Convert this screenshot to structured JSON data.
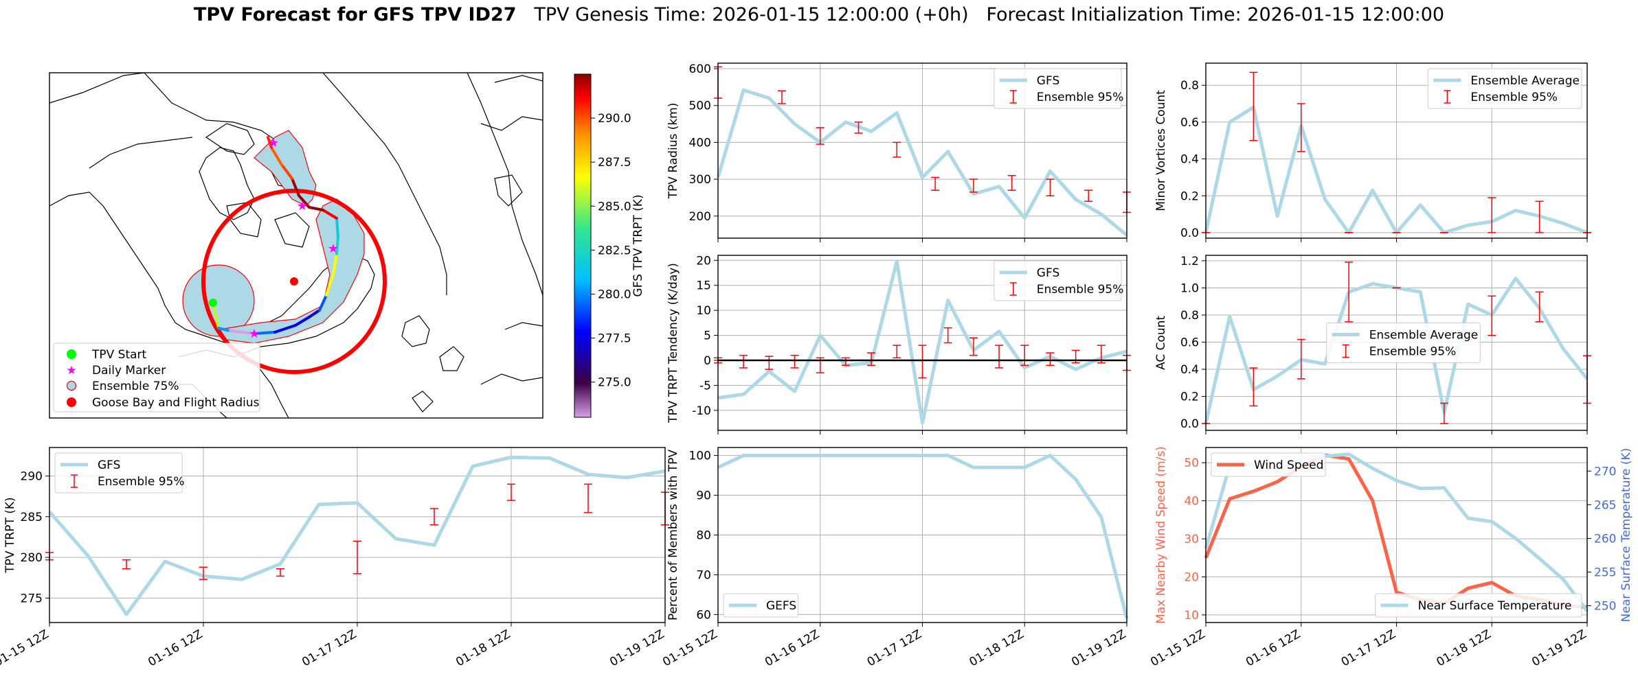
{
  "header": {
    "title_bold": "TPV Forecast for GFS TPV ID27",
    "genesis": "TPV Genesis Time: 2026-01-15 12:00:00 (+0h)",
    "init": "Forecast Initialization Time: 2026-01-15 12:00:00"
  },
  "colors": {
    "gfs_line": "#add8e6",
    "ensemble": "#ff0000",
    "wind": "#ff6347",
    "temperature_axis": "#4169e1",
    "disk": "#add8e6"
  },
  "time_axis": {
    "ticks": [
      "01-15 12Z",
      "01-16 12Z",
      "01-17 12Z",
      "01-18 12Z",
      "01-19 12Z"
    ],
    "range_hours": [
      0,
      96
    ]
  },
  "map": {
    "legend": [
      "TPV Start",
      "Daily Marker",
      "Ensemble 75%",
      "Goose Bay and Flight Radius"
    ],
    "colorbar": {
      "label": "GFS TPV TRPT (K)",
      "ticks": [
        "275.0",
        "277.5",
        "280.0",
        "282.5",
        "285.0",
        "287.5",
        "290.0"
      ],
      "range": [
        273.0,
        292.5
      ]
    },
    "track_trpt": [
      285.6,
      280.2,
      273.0,
      279.5,
      277.7,
      277.3,
      279.2,
      286.5,
      286.7,
      282.3,
      281.5,
      291.2,
      292.3,
      292.2,
      290.2,
      289.8,
      290.6
    ]
  },
  "chart_data": [
    {
      "type": "line",
      "panel": "radius",
      "ylabel": "TPV Radius (km)",
      "ylim": [
        140,
        615
      ],
      "yticks": [
        200,
        300,
        400,
        500,
        600
      ],
      "legend": "top-right",
      "series": [
        {
          "name": "GFS",
          "x": [
            0,
            6,
            12,
            18,
            24,
            30,
            36,
            42,
            48,
            54,
            60,
            66,
            72,
            78,
            84,
            90,
            96
          ],
          "values": [
            305,
            542,
            520,
            450,
            400,
            455,
            430,
            480,
            305,
            375,
            260,
            280,
            195,
            322,
            245,
            205,
            148
          ]
        },
        {
          "name": "Ensemble 95%",
          "x": [
            0,
            15,
            24,
            33,
            42,
            51,
            60,
            69,
            78,
            87,
            96
          ],
          "low": [
            520,
            505,
            395,
            425,
            360,
            270,
            265,
            270,
            255,
            240,
            210
          ],
          "high": [
            605,
            540,
            440,
            455,
            400,
            305,
            300,
            310,
            300,
            270,
            265
          ]
        }
      ]
    },
    {
      "type": "line",
      "panel": "minor_vortices",
      "ylabel": "Minor Vortices Count",
      "ylim": [
        -0.03,
        0.92
      ],
      "yticks": [
        "0.0",
        "0.2",
        "0.4",
        "0.6",
        "0.8"
      ],
      "legend": "top-right",
      "series": [
        {
          "name": "Ensemble Average",
          "x": [
            0,
            6,
            12,
            18,
            24,
            30,
            36,
            42,
            48,
            54,
            60,
            66,
            72,
            78,
            84,
            90,
            96
          ],
          "values": [
            0,
            0.6,
            0.68,
            0.09,
            0.58,
            0.18,
            0,
            0.23,
            0,
            0.15,
            0,
            0.04,
            0.06,
            0.12,
            0.09,
            0.05,
            0
          ]
        },
        {
          "name": "Ensemble 95%",
          "x": [
            0,
            12,
            24,
            36,
            48,
            60,
            72,
            84,
            96
          ],
          "low": [
            0,
            0.5,
            0.44,
            0,
            0,
            0,
            0,
            0,
            0
          ],
          "high": [
            0,
            0.87,
            0.7,
            0,
            0,
            0,
            0.19,
            0.17,
            0
          ]
        }
      ]
    },
    {
      "type": "line",
      "panel": "tendency",
      "ylabel": "TPV TRPT Tendency (K/day)",
      "ylim": [
        -14,
        21
      ],
      "yticks": [
        -10,
        -5,
        0,
        5,
        10,
        15,
        20
      ],
      "legend": "top-right",
      "series": [
        {
          "name": "GFS",
          "x": [
            0,
            6,
            12,
            18,
            24,
            30,
            36,
            42,
            48,
            54,
            60,
            66,
            72,
            78,
            84,
            90,
            96
          ],
          "values": [
            -7.5,
            -6.8,
            -2.2,
            -6.2,
            5,
            -1,
            -0.5,
            19.8,
            -12.5,
            12,
            2,
            5.8,
            -1.5,
            0.8,
            -1.8,
            0.5,
            1.8
          ]
        },
        {
          "name": "Ensemble 95%",
          "x": [
            0,
            6,
            12,
            18,
            24,
            30,
            36,
            42,
            48,
            54,
            60,
            66,
            72,
            78,
            84,
            90,
            96
          ],
          "low": [
            -0.5,
            -1.5,
            -1.8,
            -1.5,
            -2.5,
            -1,
            -1,
            0.5,
            -3.5,
            3.5,
            1,
            -1.5,
            -1,
            -1,
            -0.5,
            -0.5,
            -2
          ],
          "high": [
            0.5,
            1,
            0.8,
            1,
            0.5,
            0.5,
            1.5,
            3,
            3,
            6.5,
            4.5,
            3,
            3,
            1.5,
            2,
            3,
            1
          ]
        },
        {
          "name": "",
          "x": [
            0,
            96
          ],
          "values": [
            0,
            0
          ]
        }
      ]
    },
    {
      "type": "line",
      "panel": "ac_count",
      "ylabel": "AC Count",
      "ylim": [
        -0.05,
        1.24
      ],
      "yticks": [
        "0.0",
        "0.2",
        "0.4",
        "0.6",
        "0.8",
        "1.0",
        "1.2"
      ],
      "legend": "center",
      "series": [
        {
          "name": "Ensemble Average",
          "x": [
            0,
            6,
            12,
            18,
            24,
            30,
            36,
            42,
            48,
            54,
            60,
            66,
            72,
            78,
            84,
            90,
            96
          ],
          "values": [
            0,
            0.79,
            0.25,
            0.35,
            0.47,
            0.44,
            0.97,
            1.03,
            1.0,
            0.97,
            0.08,
            0.88,
            0.8,
            1.07,
            0.85,
            0.55,
            0.33
          ]
        },
        {
          "name": "Ensemble 95%",
          "x": [
            0,
            12,
            24,
            36,
            48,
            60,
            72,
            84,
            96
          ],
          "low": [
            0,
            0.13,
            0.33,
            0.75,
            1.0,
            0,
            0.65,
            0.75,
            0.15
          ],
          "high": [
            0,
            0.41,
            0.62,
            1.19,
            1.0,
            0.15,
            0.94,
            0.97,
            0.5
          ]
        }
      ]
    },
    {
      "type": "line",
      "panel": "trpt",
      "ylabel": "TPV TRPT (K)",
      "ylim": [
        272,
        293.5
      ],
      "yticks": [
        275,
        280,
        285,
        290
      ],
      "legend": "top-left",
      "series": [
        {
          "name": "GFS",
          "x": [
            0,
            6,
            12,
            18,
            24,
            30,
            36,
            42,
            48,
            54,
            60,
            66,
            72,
            78,
            84,
            90,
            96
          ],
          "values": [
            285.6,
            280.2,
            273.0,
            279.5,
            277.7,
            277.3,
            279.2,
            286.5,
            286.7,
            282.3,
            281.5,
            291.2,
            292.3,
            292.2,
            290.2,
            289.8,
            290.6
          ]
        },
        {
          "name": "Ensemble 95%",
          "x": [
            0,
            12,
            24,
            36,
            48,
            60,
            72,
            84,
            96
          ],
          "low": [
            279.7,
            278.6,
            277.3,
            277.7,
            278.0,
            284.0,
            287.0,
            285.5,
            284.0
          ],
          "high": [
            280.6,
            279.7,
            278.8,
            278.6,
            282.0,
            286.0,
            289.0,
            289.0,
            288.0
          ]
        }
      ]
    },
    {
      "type": "line",
      "panel": "members",
      "ylabel": "Percent of Members with TPV",
      "ylim": [
        58,
        102
      ],
      "yticks": [
        60,
        70,
        80,
        90,
        100
      ],
      "legend": "bottom-left",
      "series": [
        {
          "name": "GEFS",
          "x": [
            0,
            6,
            12,
            18,
            24,
            30,
            36,
            42,
            48,
            54,
            60,
            66,
            72,
            78,
            84,
            90,
            96
          ],
          "values": [
            97,
            100,
            100,
            100,
            100,
            100,
            100,
            100,
            100,
            100,
            97,
            97,
            97,
            100,
            94,
            84.5,
            59
          ]
        }
      ]
    },
    {
      "type": "line",
      "panel": "wind_temp",
      "ylabel": "Max Nearby Wind Speed (m/s)",
      "ylabel_right": "Near Surface Temperature (K)",
      "ylim": [
        8,
        54
      ],
      "yticks": [
        10,
        20,
        30,
        40,
        50
      ],
      "ylim_right": [
        247.5,
        273.5
      ],
      "yticks_right": [
        250,
        255,
        260,
        265,
        270
      ],
      "series": [
        {
          "name": "Wind Speed",
          "x": [
            0,
            6,
            12,
            18,
            24,
            30,
            36,
            42,
            48,
            54,
            60,
            66,
            72,
            78,
            84,
            90,
            96
          ],
          "values": [
            25,
            40.5,
            42.5,
            45,
            49,
            52,
            51,
            40,
            16,
            14,
            13,
            17,
            18.5,
            15,
            14,
            12.5,
            12
          ]
        },
        {
          "name": "Near Surface Temperature",
          "x": [
            0,
            6,
            12,
            18,
            24,
            30,
            36,
            42,
            48,
            54,
            60,
            66,
            72,
            78,
            84,
            90,
            96
          ],
          "values": [
            258.5,
            270.8,
            271.0,
            270.0,
            271.8,
            272.2,
            272.5,
            270.4,
            268.6,
            267.4,
            267.5,
            263.0,
            262.5,
            260.0,
            257.0,
            253.9,
            249.2
          ]
        }
      ]
    }
  ]
}
